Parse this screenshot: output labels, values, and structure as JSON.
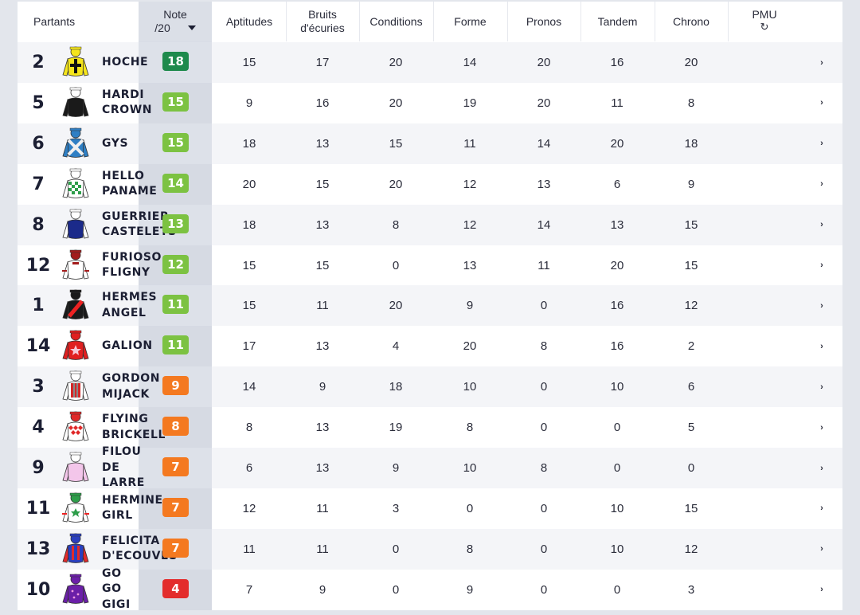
{
  "headers": {
    "partants": "Partants",
    "note_line1": "Note",
    "note_line2": "/20",
    "aptitudes": "Aptitudes",
    "bruits_line1": "Bruits",
    "bruits_line2": "d'écuries",
    "conditions": "Conditions",
    "forme": "Forme",
    "pronos": "Pronos",
    "tandem": "Tandem",
    "chrono": "Chrono",
    "pmu": "PMU",
    "pmu_icon": "refresh-icon"
  },
  "colors": {
    "note_dark_green": "#1e8a4c",
    "note_green": "#7cc242",
    "note_orange": "#f47920",
    "note_red": "#e32c2c"
  },
  "rows": [
    {
      "num": "2",
      "name": "HOCHE",
      "note": "18",
      "note_color": "#1e8a4c",
      "aptitudes": "15",
      "bruits": "17",
      "conditions": "20",
      "forme": "14",
      "pronos": "20",
      "tandem": "16",
      "chrono": "20",
      "jockey": "yellow-black-cross"
    },
    {
      "num": "5",
      "name": "HARDI\nCROWN",
      "note": "15",
      "note_color": "#7cc242",
      "aptitudes": "9",
      "bruits": "16",
      "conditions": "20",
      "forme": "19",
      "pronos": "20",
      "tandem": "11",
      "chrono": "8",
      "jockey": "black"
    },
    {
      "num": "6",
      "name": "GYS",
      "note": "15",
      "note_color": "#7cc242",
      "aptitudes": "18",
      "bruits": "13",
      "conditions": "15",
      "forme": "11",
      "pronos": "14",
      "tandem": "20",
      "chrono": "18",
      "jockey": "blue-white-cross"
    },
    {
      "num": "7",
      "name": "HELLO\nPANAME",
      "note": "14",
      "note_color": "#7cc242",
      "aptitudes": "20",
      "bruits": "15",
      "conditions": "20",
      "forme": "12",
      "pronos": "13",
      "tandem": "6",
      "chrono": "9",
      "jockey": "green-check"
    },
    {
      "num": "8",
      "name": "GUERRIER\nCASTELETS",
      "note": "13",
      "note_color": "#7cc242",
      "aptitudes": "18",
      "bruits": "13",
      "conditions": "8",
      "forme": "12",
      "pronos": "14",
      "tandem": "13",
      "chrono": "15",
      "jockey": "navy-white"
    },
    {
      "num": "12",
      "name": "FURIOSO\nFLIGNY",
      "note": "12",
      "note_color": "#7cc242",
      "aptitudes": "15",
      "bruits": "15",
      "conditions": "0",
      "forme": "13",
      "pronos": "11",
      "tandem": "20",
      "chrono": "15",
      "jockey": "white-red"
    },
    {
      "num": "1",
      "name": "HERMES\nANGEL",
      "note": "11",
      "note_color": "#7cc242",
      "aptitudes": "15",
      "bruits": "11",
      "conditions": "20",
      "forme": "9",
      "pronos": "0",
      "tandem": "16",
      "chrono": "12",
      "jockey": "black-red-sash"
    },
    {
      "num": "14",
      "name": "GALION",
      "note": "11",
      "note_color": "#7cc242",
      "aptitudes": "17",
      "bruits": "13",
      "conditions": "4",
      "forme": "20",
      "pronos": "8",
      "tandem": "16",
      "chrono": "2",
      "jockey": "red-star"
    },
    {
      "num": "3",
      "name": "GORDON\nMIJACK",
      "note": "9",
      "note_color": "#f47920",
      "aptitudes": "14",
      "bruits": "9",
      "conditions": "18",
      "forme": "10",
      "pronos": "0",
      "tandem": "10",
      "chrono": "6",
      "jockey": "white-red-stripe"
    },
    {
      "num": "4",
      "name": "FLYING\nBRICKELL",
      "note": "8",
      "note_color": "#f47920",
      "aptitudes": "8",
      "bruits": "13",
      "conditions": "19",
      "forme": "8",
      "pronos": "0",
      "tandem": "0",
      "chrono": "5",
      "jockey": "red-white-diamond"
    },
    {
      "num": "9",
      "name": "FILOU\nDE\nLARRE",
      "note": "7",
      "note_color": "#f47920",
      "aptitudes": "6",
      "bruits": "13",
      "conditions": "9",
      "forme": "10",
      "pronos": "8",
      "tandem": "0",
      "chrono": "0",
      "jockey": "pink"
    },
    {
      "num": "11",
      "name": "HERMINE\nGIRL",
      "note": "7",
      "note_color": "#f47920",
      "aptitudes": "12",
      "bruits": "11",
      "conditions": "3",
      "forme": "0",
      "pronos": "0",
      "tandem": "10",
      "chrono": "15",
      "jockey": "white-green-star"
    },
    {
      "num": "13",
      "name": "FELICITA\nD'ECOUVES",
      "note": "7",
      "note_color": "#f47920",
      "aptitudes": "11",
      "bruits": "11",
      "conditions": "0",
      "forme": "8",
      "pronos": "0",
      "tandem": "10",
      "chrono": "12",
      "jockey": "blue-red-stripes"
    },
    {
      "num": "10",
      "name": "GO\nGO\nGIGI",
      "note": "4",
      "note_color": "#e32c2c",
      "aptitudes": "7",
      "bruits": "9",
      "conditions": "0",
      "forme": "9",
      "pronos": "0",
      "tandem": "0",
      "chrono": "3",
      "jockey": "purple"
    }
  ]
}
